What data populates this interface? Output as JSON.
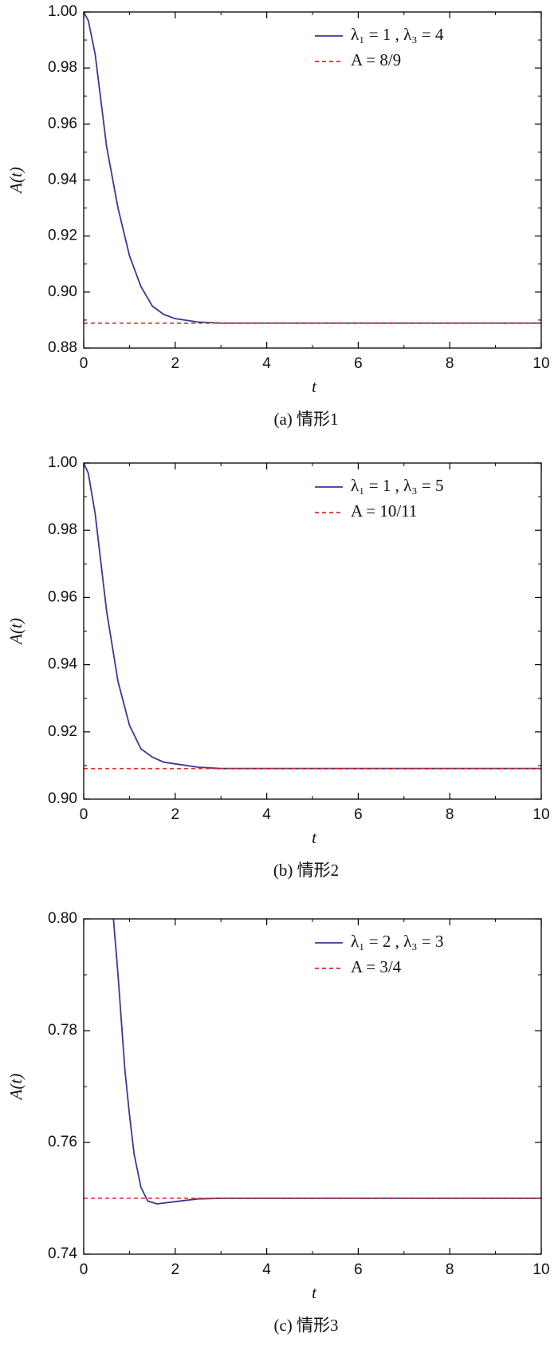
{
  "chart_data": [
    {
      "type": "line",
      "caption": "(a) 情形1",
      "xlabel": "t",
      "ylabel": "A(t)",
      "x": [
        0,
        0.1,
        0.25,
        0.5,
        0.75,
        1,
        1.25,
        1.5,
        1.75,
        2,
        2.5,
        3,
        4,
        6,
        8,
        10
      ],
      "series": [
        {
          "name": "λ₁ = 1 , λ₃ = 4",
          "color": "#353a96",
          "dash": false,
          "values": [
            1.0,
            0.997,
            0.985,
            0.952,
            0.93,
            0.913,
            0.902,
            0.895,
            0.892,
            0.8905,
            0.8893,
            0.8889,
            0.8889,
            0.8889,
            0.8889,
            0.8889
          ]
        },
        {
          "name": "A = 8/9",
          "color": "#e8262a",
          "dash": true,
          "values": [
            0.8889,
            0.8889,
            0.8889,
            0.8889,
            0.8889,
            0.8889,
            0.8889,
            0.8889,
            0.8889,
            0.8889,
            0.8889,
            0.8889,
            0.8889,
            0.8889,
            0.8889,
            0.8889
          ]
        }
      ],
      "xlim": [
        0,
        10
      ],
      "xticks": [
        0,
        2,
        4,
        6,
        8,
        10
      ],
      "ylim": [
        0.88,
        1.0
      ],
      "yticks": [
        0.88,
        {
          "value": 0.9,
          "label": "0.90"
        },
        0.92,
        0.94,
        0.96,
        0.98,
        {
          "value": 1.0,
          "label": "1.00"
        }
      ],
      "legend": "upper right"
    },
    {
      "type": "line",
      "caption": "(b) 情形2",
      "xlabel": "t",
      "ylabel": "A(t)",
      "x": [
        0,
        0.1,
        0.25,
        0.5,
        0.75,
        1,
        1.25,
        1.5,
        1.75,
        2,
        2.5,
        3,
        4,
        6,
        8,
        10
      ],
      "series": [
        {
          "name": "λ₁ = 1 , λ₃ = 5",
          "color": "#353a96",
          "dash": false,
          "values": [
            1.0,
            0.997,
            0.985,
            0.956,
            0.935,
            0.922,
            0.915,
            0.9125,
            0.911,
            0.9105,
            0.9095,
            0.9091,
            0.9091,
            0.9091,
            0.9091,
            0.9091
          ]
        },
        {
          "name": "A = 10/11",
          "color": "#e8262a",
          "dash": true,
          "values": [
            0.9091,
            0.9091,
            0.9091,
            0.9091,
            0.9091,
            0.9091,
            0.9091,
            0.9091,
            0.9091,
            0.9091,
            0.9091,
            0.9091,
            0.9091,
            0.9091,
            0.9091,
            0.9091
          ]
        }
      ],
      "xlim": [
        0,
        10
      ],
      "xticks": [
        0,
        2,
        4,
        6,
        8,
        10
      ],
      "ylim": [
        0.9,
        1.0
      ],
      "yticks": [
        {
          "value": 0.9,
          "label": "0.90"
        },
        0.92,
        0.94,
        0.96,
        0.98,
        {
          "value": 1.0,
          "label": "1.00"
        }
      ],
      "legend": "upper right"
    },
    {
      "type": "line",
      "caption": "(c) 情形3",
      "xlabel": "t",
      "ylabel": "A(t)",
      "x": [
        0,
        0.65,
        0.75,
        0.9,
        1,
        1.1,
        1.25,
        1.4,
        1.6,
        2,
        2.5,
        3,
        4,
        6,
        8,
        10
      ],
      "series": [
        {
          "name": "λ₁ = 2 , λ₃ = 3",
          "color": "#353a96",
          "dash": false,
          "values": [
            null,
            0.8,
            0.79,
            0.773,
            0.765,
            0.758,
            0.752,
            0.7495,
            0.749,
            0.7494,
            0.7499,
            0.75,
            0.75,
            0.75,
            0.75,
            0.75
          ]
        },
        {
          "name": "A = 3/4",
          "color": "#e8262a",
          "dash": true,
          "values": [
            0.75,
            0.75,
            0.75,
            0.75,
            0.75,
            0.75,
            0.75,
            0.75,
            0.75,
            0.75,
            0.75,
            0.75,
            0.75,
            0.75,
            0.75,
            0.75
          ]
        }
      ],
      "xlim": [
        0,
        10
      ],
      "xticks": [
        0,
        2,
        4,
        6,
        8,
        10
      ],
      "ylim": [
        0.74,
        0.8
      ],
      "yticks": [
        0.74,
        0.76,
        0.78,
        {
          "value": 0.8,
          "label": "0.80"
        }
      ],
      "legend": "upper right"
    }
  ]
}
